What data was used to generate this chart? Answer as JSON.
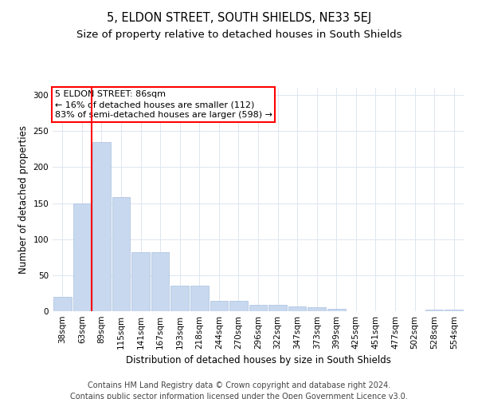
{
  "title": "5, ELDON STREET, SOUTH SHIELDS, NE33 5EJ",
  "subtitle": "Size of property relative to detached houses in South Shields",
  "xlabel": "Distribution of detached houses by size in South Shields",
  "ylabel": "Number of detached properties",
  "categories": [
    "38sqm",
    "63sqm",
    "89sqm",
    "115sqm",
    "141sqm",
    "167sqm",
    "193sqm",
    "218sqm",
    "244sqm",
    "270sqm",
    "296sqm",
    "322sqm",
    "347sqm",
    "373sqm",
    "399sqm",
    "425sqm",
    "451sqm",
    "477sqm",
    "502sqm",
    "528sqm",
    "554sqm"
  ],
  "values": [
    20,
    150,
    235,
    158,
    82,
    82,
    35,
    35,
    14,
    14,
    9,
    9,
    7,
    5,
    3,
    0,
    0,
    0,
    0,
    2,
    2
  ],
  "bar_color": "#c8d8ee",
  "bar_edge_color": "#a8c0e0",
  "grid_color": "#dde6f0",
  "red_line_bar_index": 2,
  "annotation_box_text": "5 ELDON STREET: 86sqm\n← 16% of detached houses are smaller (112)\n83% of semi-detached houses are larger (598) →",
  "ylim": [
    0,
    310
  ],
  "yticks": [
    0,
    50,
    100,
    150,
    200,
    250,
    300
  ],
  "footnote1": "Contains HM Land Registry data © Crown copyright and database right 2024.",
  "footnote2": "Contains public sector information licensed under the Open Government Licence v3.0.",
  "title_fontsize": 10.5,
  "subtitle_fontsize": 9.5,
  "axis_label_fontsize": 8.5,
  "tick_fontsize": 7.5,
  "annotation_fontsize": 8,
  "footnote_fontsize": 7
}
